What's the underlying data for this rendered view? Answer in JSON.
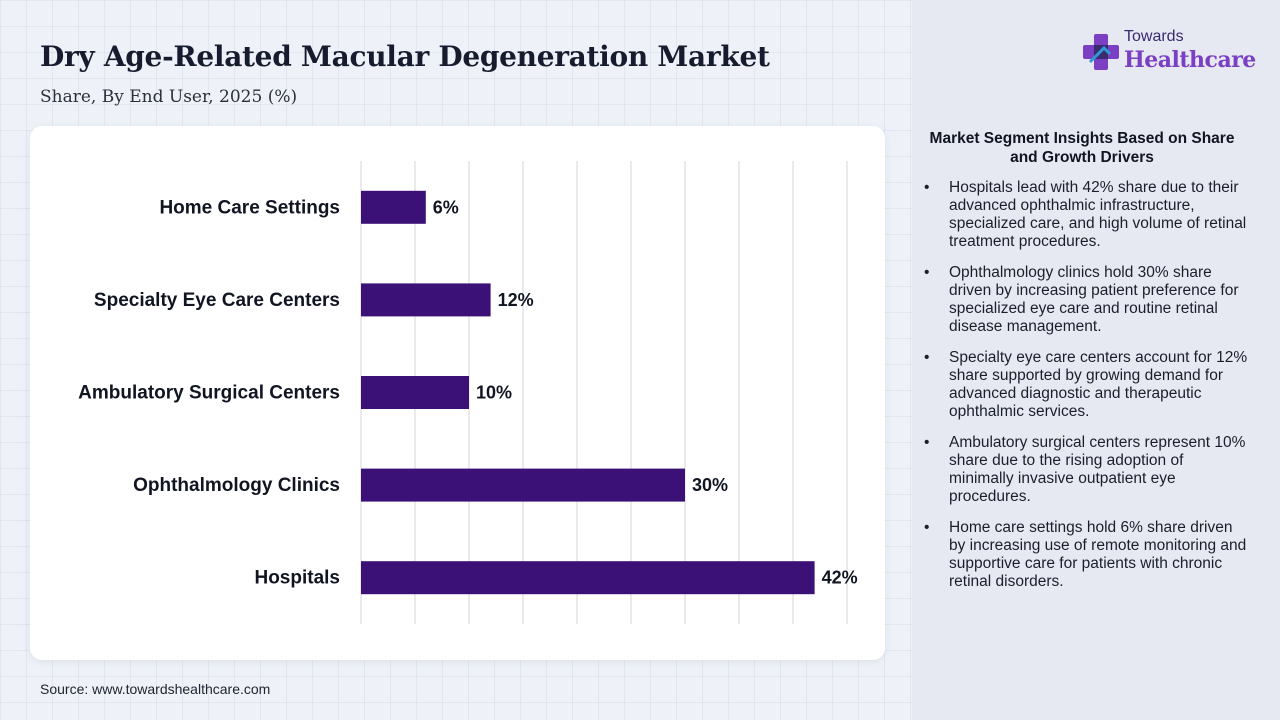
{
  "title": "Dry Age-Related Macular Degeneration Market",
  "subtitle": "Share, By End User, 2025 (%)",
  "source": "Source: www.towardshealthcare.com",
  "logo": {
    "top": "Towards",
    "bottom": "Healthcare",
    "colors": {
      "primary": "#7b3fc4",
      "secondary": "#3a2a6e"
    }
  },
  "insights": {
    "title": "Market Segment Insights Based on Share and Growth Drivers",
    "bullet": "•",
    "items": [
      "Hospitals lead with 42% share due to their advanced ophthalmic infrastructure, specialized care, and high volume of retinal treatment procedures.",
      "Ophthalmology clinics hold 30% share driven by increasing patient preference for specialized eye care and routine retinal disease management.",
      "Specialty eye care centers account for 12% share supported by growing demand for advanced diagnostic and therapeutic ophthalmic services.",
      "Ambulatory surgical centers represent 10% share due to the rising adoption of minimally invasive outpatient eye procedures.",
      "Home care settings hold 6% share driven by increasing use of remote monitoring and supportive care for patients with chronic retinal disorders."
    ]
  },
  "chart_data": {
    "type": "bar",
    "orientation": "horizontal",
    "categories": [
      "Home Care Settings",
      "Specialty Eye Care Centers",
      "Ambulatory Surgical Centers",
      "Ophthalmology Clinics",
      "Hospitals"
    ],
    "values": [
      6,
      12,
      10,
      30,
      42
    ],
    "value_labels": [
      "6%",
      "12%",
      "10%",
      "30%",
      "42%"
    ],
    "xlim": [
      0,
      45
    ],
    "grid": true,
    "bar_color": "#3b1178",
    "grid_color": "#d4d6dc"
  }
}
